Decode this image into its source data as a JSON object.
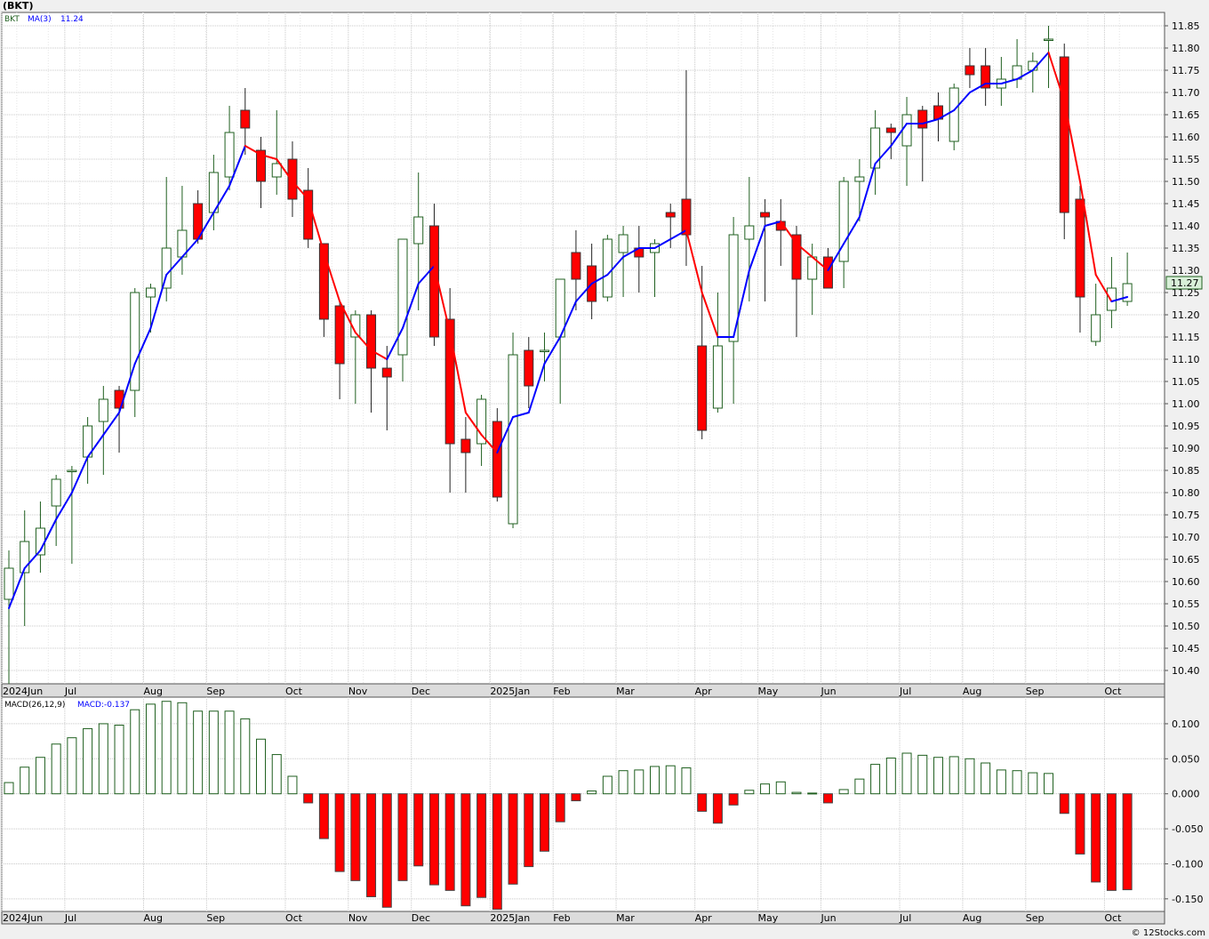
{
  "title": "(BKT)",
  "credit": "© 12Stocks.com",
  "chart_data": [
    {
      "type": "candlestick",
      "legend": {
        "symbol": "BKT",
        "ma_label": "MA(3)",
        "ma_value": "11.24"
      },
      "last_price_label": "11.27",
      "ylim": [
        10.37,
        11.88
      ],
      "y_ticks": [
        10.4,
        10.45,
        10.5,
        10.55,
        10.6,
        10.65,
        10.7,
        10.75,
        10.8,
        10.85,
        10.9,
        10.95,
        11.0,
        11.05,
        11.1,
        11.15,
        11.2,
        11.25,
        11.3,
        11.35,
        11.4,
        11.45,
        11.5,
        11.55,
        11.6,
        11.65,
        11.7,
        11.75,
        11.8,
        11.85
      ],
      "colors": {
        "up": "#1f5f1f",
        "down": "#ff0000",
        "ma_up": "#0000ff",
        "ma_down": "#ff0000",
        "grid": "#c8c8c8"
      },
      "candles": [
        {
          "o": 10.56,
          "h": 10.67,
          "l": 10.37,
          "c": 10.63,
          "ma": 10.54
        },
        {
          "o": 10.62,
          "h": 10.76,
          "l": 10.5,
          "c": 10.69,
          "ma": 10.63
        },
        {
          "o": 10.66,
          "h": 10.78,
          "l": 10.62,
          "c": 10.72,
          "ma": 10.67
        },
        {
          "o": 10.77,
          "h": 10.84,
          "l": 10.68,
          "c": 10.83,
          "ma": 10.74
        },
        {
          "o": 10.85,
          "h": 10.86,
          "l": 10.64,
          "c": 10.85,
          "ma": 10.8
        },
        {
          "o": 10.88,
          "h": 10.97,
          "l": 10.82,
          "c": 10.95,
          "ma": 10.88
        },
        {
          "o": 10.96,
          "h": 11.04,
          "l": 10.84,
          "c": 11.01,
          "ma": 10.93
        },
        {
          "o": 11.03,
          "h": 11.04,
          "l": 10.89,
          "c": 10.99,
          "ma": 10.98
        },
        {
          "o": 11.03,
          "h": 11.26,
          "l": 10.97,
          "c": 11.25,
          "ma": 11.09
        },
        {
          "o": 11.24,
          "h": 11.27,
          "l": 11.16,
          "c": 11.26,
          "ma": 11.17
        },
        {
          "o": 11.26,
          "h": 11.51,
          "l": 11.23,
          "c": 11.35,
          "ma": 11.29
        },
        {
          "o": 11.33,
          "h": 11.49,
          "l": 11.29,
          "c": 11.39,
          "ma": 11.33
        },
        {
          "o": 11.45,
          "h": 11.48,
          "l": 11.36,
          "c": 11.37,
          "ma": 11.37
        },
        {
          "o": 11.43,
          "h": 11.56,
          "l": 11.39,
          "c": 11.52,
          "ma": 11.43
        },
        {
          "o": 11.51,
          "h": 11.67,
          "l": 11.48,
          "c": 11.61,
          "ma": 11.49
        },
        {
          "o": 11.66,
          "h": 11.71,
          "l": 11.56,
          "c": 11.62,
          "ma": 11.58
        },
        {
          "o": 11.57,
          "h": 11.6,
          "l": 11.44,
          "c": 11.5,
          "ma": 11.56
        },
        {
          "o": 11.51,
          "h": 11.66,
          "l": 11.47,
          "c": 11.54,
          "ma": 11.55
        },
        {
          "o": 11.55,
          "h": 11.59,
          "l": 11.42,
          "c": 11.46,
          "ma": 11.5
        },
        {
          "o": 11.48,
          "h": 11.53,
          "l": 11.35,
          "c": 11.37,
          "ma": 11.46
        },
        {
          "o": 11.36,
          "h": 11.36,
          "l": 11.15,
          "c": 11.19,
          "ma": 11.34
        },
        {
          "o": 11.22,
          "h": 11.23,
          "l": 11.01,
          "c": 11.09,
          "ma": 11.23
        },
        {
          "o": 11.15,
          "h": 11.21,
          "l": 11.0,
          "c": 11.2,
          "ma": 11.16
        },
        {
          "o": 11.2,
          "h": 11.21,
          "l": 10.98,
          "c": 11.08,
          "ma": 11.12
        },
        {
          "o": 11.08,
          "h": 11.13,
          "l": 10.94,
          "c": 11.06,
          "ma": 11.1
        },
        {
          "o": 11.11,
          "h": 11.37,
          "l": 11.05,
          "c": 11.37,
          "ma": 11.17
        },
        {
          "o": 11.36,
          "h": 11.52,
          "l": 11.21,
          "c": 11.42,
          "ma": 11.27
        },
        {
          "o": 11.4,
          "h": 11.45,
          "l": 11.13,
          "c": 11.15,
          "ma": 11.31
        },
        {
          "o": 11.19,
          "h": 11.26,
          "l": 10.8,
          "c": 10.91,
          "ma": 11.16
        },
        {
          "o": 10.92,
          "h": 10.97,
          "l": 10.8,
          "c": 10.89,
          "ma": 10.98
        },
        {
          "o": 10.91,
          "h": 11.02,
          "l": 10.86,
          "c": 11.01,
          "ma": 10.93
        },
        {
          "o": 10.96,
          "h": 10.99,
          "l": 10.78,
          "c": 10.79,
          "ma": 10.89
        },
        {
          "o": 10.73,
          "h": 11.16,
          "l": 10.72,
          "c": 11.11,
          "ma": 10.97
        },
        {
          "o": 11.12,
          "h": 11.15,
          "l": 10.99,
          "c": 11.04,
          "ma": 10.98
        },
        {
          "o": 11.12,
          "h": 11.16,
          "l": 11.05,
          "c": 11.12,
          "ma": 11.09
        },
        {
          "o": 11.15,
          "h": 11.28,
          "l": 11.0,
          "c": 11.28,
          "ma": 11.15
        },
        {
          "o": 11.34,
          "h": 11.39,
          "l": 11.21,
          "c": 11.28,
          "ma": 11.23
        },
        {
          "o": 11.31,
          "h": 11.36,
          "l": 11.19,
          "c": 11.23,
          "ma": 11.27
        },
        {
          "o": 11.24,
          "h": 11.38,
          "l": 11.23,
          "c": 11.37,
          "ma": 11.29
        },
        {
          "o": 11.34,
          "h": 11.4,
          "l": 11.24,
          "c": 11.38,
          "ma": 11.33
        },
        {
          "o": 11.35,
          "h": 11.4,
          "l": 11.25,
          "c": 11.33,
          "ma": 11.35
        },
        {
          "o": 11.34,
          "h": 11.37,
          "l": 11.24,
          "c": 11.36,
          "ma": 11.35
        },
        {
          "o": 11.43,
          "h": 11.45,
          "l": 11.35,
          "c": 11.42,
          "ma": 11.37
        },
        {
          "o": 11.46,
          "h": 11.75,
          "l": 11.31,
          "c": 11.38,
          "ma": 11.39
        },
        {
          "o": 11.13,
          "h": 11.31,
          "l": 10.92,
          "c": 10.94,
          "ma": 11.25
        },
        {
          "o": 10.99,
          "h": 11.25,
          "l": 10.98,
          "c": 11.13,
          "ma": 11.15
        },
        {
          "o": 11.14,
          "h": 11.42,
          "l": 11.0,
          "c": 11.38,
          "ma": 11.15
        },
        {
          "o": 11.37,
          "h": 11.51,
          "l": 11.23,
          "c": 11.4,
          "ma": 11.3
        },
        {
          "o": 11.43,
          "h": 11.46,
          "l": 11.23,
          "c": 11.42,
          "ma": 11.4
        },
        {
          "o": 11.41,
          "h": 11.46,
          "l": 11.31,
          "c": 11.39,
          "ma": 11.41
        },
        {
          "o": 11.38,
          "h": 11.4,
          "l": 11.15,
          "c": 11.28,
          "ma": 11.36
        },
        {
          "o": 11.28,
          "h": 11.36,
          "l": 11.2,
          "c": 11.33,
          "ma": 11.33
        },
        {
          "o": 11.33,
          "h": 11.35,
          "l": 11.26,
          "c": 11.26,
          "ma": 11.3
        },
        {
          "o": 11.32,
          "h": 11.51,
          "l": 11.26,
          "c": 11.5,
          "ma": 11.36
        },
        {
          "o": 11.5,
          "h": 11.55,
          "l": 11.41,
          "c": 11.51,
          "ma": 11.42
        },
        {
          "o": 11.53,
          "h": 11.66,
          "l": 11.47,
          "c": 11.62,
          "ma": 11.54
        },
        {
          "o": 11.62,
          "h": 11.63,
          "l": 11.55,
          "c": 11.61,
          "ma": 11.58
        },
        {
          "o": 11.58,
          "h": 11.69,
          "l": 11.49,
          "c": 11.65,
          "ma": 11.63
        },
        {
          "o": 11.66,
          "h": 11.67,
          "l": 11.5,
          "c": 11.62,
          "ma": 11.63
        },
        {
          "o": 11.67,
          "h": 11.7,
          "l": 11.59,
          "c": 11.64,
          "ma": 11.64
        },
        {
          "o": 11.59,
          "h": 11.72,
          "l": 11.57,
          "c": 11.71,
          "ma": 11.66
        },
        {
          "o": 11.76,
          "h": 11.8,
          "l": 11.71,
          "c": 11.74,
          "ma": 11.7
        },
        {
          "o": 11.76,
          "h": 11.8,
          "l": 11.67,
          "c": 11.71,
          "ma": 11.72
        },
        {
          "o": 11.71,
          "h": 11.78,
          "l": 11.67,
          "c": 11.73,
          "ma": 11.72
        },
        {
          "o": 11.73,
          "h": 11.82,
          "l": 11.71,
          "c": 11.76,
          "ma": 11.73
        },
        {
          "o": 11.75,
          "h": 11.79,
          "l": 11.7,
          "c": 11.77,
          "ma": 11.75
        },
        {
          "o": 11.82,
          "h": 11.85,
          "l": 11.71,
          "c": 11.82,
          "ma": 11.79
        },
        {
          "o": 11.78,
          "h": 11.81,
          "l": 11.37,
          "c": 11.43,
          "ma": 11.68
        },
        {
          "o": 11.46,
          "h": 11.49,
          "l": 11.16,
          "c": 11.24,
          "ma": 11.5
        },
        {
          "o": 11.14,
          "h": 11.27,
          "l": 11.13,
          "c": 11.2,
          "ma": 11.29
        },
        {
          "o": 11.21,
          "h": 11.33,
          "l": 11.17,
          "c": 11.26,
          "ma": 11.23
        },
        {
          "o": 11.23,
          "h": 11.34,
          "l": 11.22,
          "c": 11.27,
          "ma": 11.24
        }
      ],
      "x_labels": [
        {
          "index": 0,
          "label": "2024Jun"
        },
        {
          "index": 4,
          "label": "Jul"
        },
        {
          "index": 9,
          "label": "Aug"
        },
        {
          "index": 13,
          "label": "Sep"
        },
        {
          "index": 18,
          "label": "Oct"
        },
        {
          "index": 22,
          "label": "Nov"
        },
        {
          "index": 26,
          "label": "Dec"
        },
        {
          "index": 31,
          "label": "2025Jan"
        },
        {
          "index": 35,
          "label": "Feb"
        },
        {
          "index": 39,
          "label": "Mar"
        },
        {
          "index": 44,
          "label": "Apr"
        },
        {
          "index": 48,
          "label": "May"
        },
        {
          "index": 52,
          "label": "Jun"
        },
        {
          "index": 57,
          "label": "Jul"
        },
        {
          "index": 61,
          "label": "Aug"
        },
        {
          "index": 65,
          "label": "Sep"
        },
        {
          "index": 70,
          "label": "Oct"
        }
      ]
    },
    {
      "type": "bar",
      "legend": {
        "name": "MACD(26,12,9)",
        "value_label": "MACD:-0.137"
      },
      "ylim": [
        -0.168,
        0.138
      ],
      "y_ticks": [
        {
          "v": 0.1,
          "label": "0.100"
        },
        {
          "v": 0.05,
          "label": "0.050"
        },
        {
          "v": 0.0,
          "label": "0.000"
        },
        {
          "v": -0.05,
          "label": "-0.050"
        },
        {
          "v": -0.1,
          "label": "-0.100"
        },
        {
          "v": -0.15,
          "label": "-0.150"
        }
      ],
      "values": [
        0.016,
        0.038,
        0.052,
        0.071,
        0.08,
        0.093,
        0.1,
        0.098,
        0.12,
        0.128,
        0.132,
        0.13,
        0.118,
        0.118,
        0.118,
        0.107,
        0.078,
        0.056,
        0.025,
        -0.013,
        -0.064,
        -0.111,
        -0.124,
        -0.147,
        -0.162,
        -0.124,
        -0.103,
        -0.13,
        -0.138,
        -0.16,
        -0.148,
        -0.165,
        -0.129,
        -0.104,
        -0.082,
        -0.04,
        -0.01,
        0.004,
        0.025,
        0.033,
        0.034,
        0.039,
        0.04,
        0.037,
        -0.025,
        -0.042,
        -0.016,
        0.005,
        0.014,
        0.017,
        0.002,
        0.001,
        -0.013,
        0.006,
        0.021,
        0.042,
        0.051,
        0.058,
        0.055,
        0.052,
        0.053,
        0.05,
        0.044,
        0.034,
        0.033,
        0.03,
        0.029,
        -0.028,
        -0.086,
        -0.126,
        -0.138,
        -0.137
      ]
    }
  ]
}
